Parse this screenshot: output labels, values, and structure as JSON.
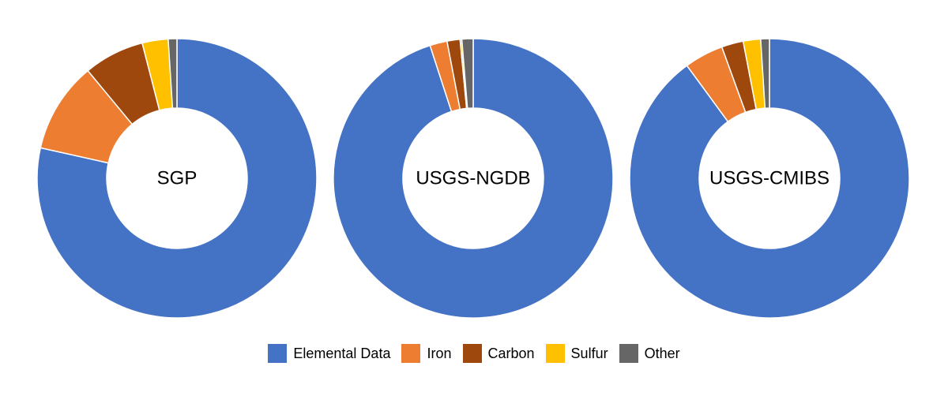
{
  "chart_data": [
    {
      "type": "pie",
      "title": "SGP",
      "categories": [
        "Elemental Data",
        "Iron",
        "Carbon",
        "Sulfur",
        "Other"
      ],
      "values": [
        78.5,
        10.5,
        7.0,
        3.0,
        1.0
      ]
    },
    {
      "type": "pie",
      "title": "USGS-NGDB",
      "categories": [
        "Elemental Data",
        "Iron",
        "Carbon",
        "Sulfur",
        "Other"
      ],
      "values": [
        95.0,
        2.0,
        1.5,
        0.2,
        1.3
      ]
    },
    {
      "type": "pie",
      "title": "USGS-CMIBS",
      "categories": [
        "Elemental Data",
        "Iron",
        "Carbon",
        "Sulfur",
        "Other"
      ],
      "values": [
        89.5,
        4.5,
        2.5,
        2.0,
        1.0
      ]
    }
  ],
  "legend": [
    {
      "label": "Elemental Data",
      "color": "#4472C4"
    },
    {
      "label": "Iron",
      "color": "#ED7D31"
    },
    {
      "label": "Carbon",
      "color": "#9E480E"
    },
    {
      "label": "Sulfur",
      "color": "#FFC000"
    },
    {
      "label": "Other",
      "color": "#666666"
    }
  ]
}
